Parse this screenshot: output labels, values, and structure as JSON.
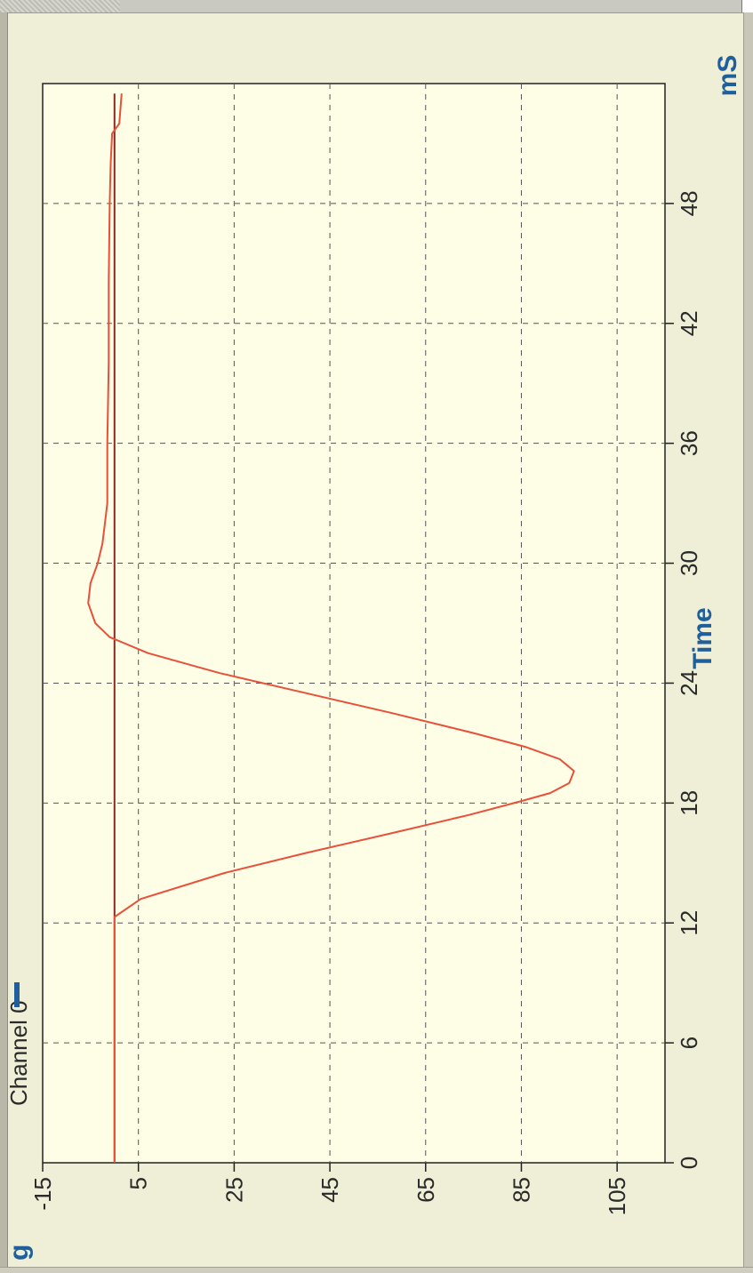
{
  "legend": {
    "label": "Channel 0",
    "swatch_color": "#1e5f9c"
  },
  "corner_glyph": "g",
  "chart_data": {
    "type": "line",
    "orientation": "rotated-90-clockwise",
    "xlabel": "Time",
    "x_unit": "mS",
    "ylabel": "",
    "xlim": [
      0,
      54
    ],
    "ylim": [
      -15,
      115
    ],
    "x_ticks": [
      0,
      6,
      12,
      18,
      24,
      30,
      36,
      42,
      48
    ],
    "y_ticks": [
      -15,
      5,
      25,
      45,
      65,
      85,
      105
    ],
    "grid": true,
    "series": [
      {
        "color": "#e8503a",
        "x": [
          0,
          8,
          12.3,
          13.2,
          14.5,
          15.5,
          16.5,
          17.4,
          18.1,
          18.5,
          19.0,
          19.6,
          20.2,
          20.8,
          21.5,
          22.5,
          23.5,
          24.5,
          25.5,
          26.3,
          27.0,
          28.0,
          29.0,
          30.0,
          31.0,
          33.0,
          36.0,
          40.0,
          44.0,
          48.0,
          50.0,
          51.5,
          52.0,
          53.5
        ],
        "y": [
          0,
          0,
          0,
          5.5,
          23,
          40,
          58,
          74,
          85,
          91,
          95,
          96,
          93,
          86,
          75,
          58,
          40,
          22,
          7,
          -1,
          -4,
          -5.5,
          -5,
          -3.5,
          -2.5,
          -1.5,
          -1.5,
          -1.2,
          -1.2,
          -1.0,
          -0.8,
          -0.5,
          1.0,
          1.5
        ]
      },
      {
        "color": "#8a2a22",
        "x": [
          0,
          53.5
        ],
        "y": [
          0,
          0
        ]
      }
    ]
  }
}
